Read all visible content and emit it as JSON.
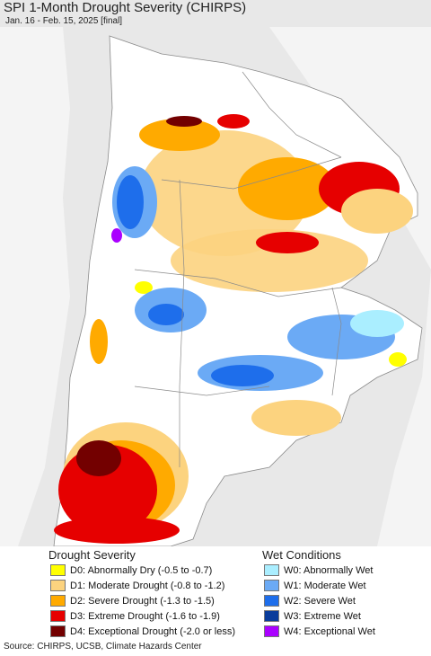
{
  "map": {
    "title": "SPI 1-Month Drought Severity (CHIRPS)",
    "subtitle": "Jan. 16 - Feb. 15, 2025 [final]",
    "colors": {
      "land": "#ffffff",
      "ocean": "#e8e8e8",
      "outside_land": "#f4f4f4",
      "border": "#8a8a8a"
    }
  },
  "legend": {
    "drought": {
      "title": "Drought Severity",
      "items": [
        {
          "code": "D0",
          "label": "D0: Abnormally Dry (-0.5 to -0.7)",
          "color": "#ffff00"
        },
        {
          "code": "D1",
          "label": "D1: Moderate Drought (-0.8 to -1.2)",
          "color": "#fcd37f"
        },
        {
          "code": "D2",
          "label": "D2: Severe Drought (-1.3 to -1.5)",
          "color": "#ffaa00"
        },
        {
          "code": "D3",
          "label": "D3: Extreme Drought (-1.6 to -1.9)",
          "color": "#e60000"
        },
        {
          "code": "D4",
          "label": "D4: Exceptional Drought (-2.0 or less)",
          "color": "#730000"
        }
      ]
    },
    "wet": {
      "title": "Wet Conditions",
      "items": [
        {
          "code": "W0",
          "label": "W0: Abnormally Wet",
          "color": "#aaeeff"
        },
        {
          "code": "W1",
          "label": "W1: Moderate Wet",
          "color": "#6baaf5"
        },
        {
          "code": "W2",
          "label": "W2: Severe Wet",
          "color": "#1e6eeb"
        },
        {
          "code": "W3",
          "label": "W3: Extreme Wet",
          "color": "#0a3c9b"
        },
        {
          "code": "W4",
          "label": "W4: Exceptional Wet",
          "color": "#aa00ff"
        }
      ]
    }
  },
  "source": "Source: CHIRPS, UCSB, Climate Hazards Center"
}
